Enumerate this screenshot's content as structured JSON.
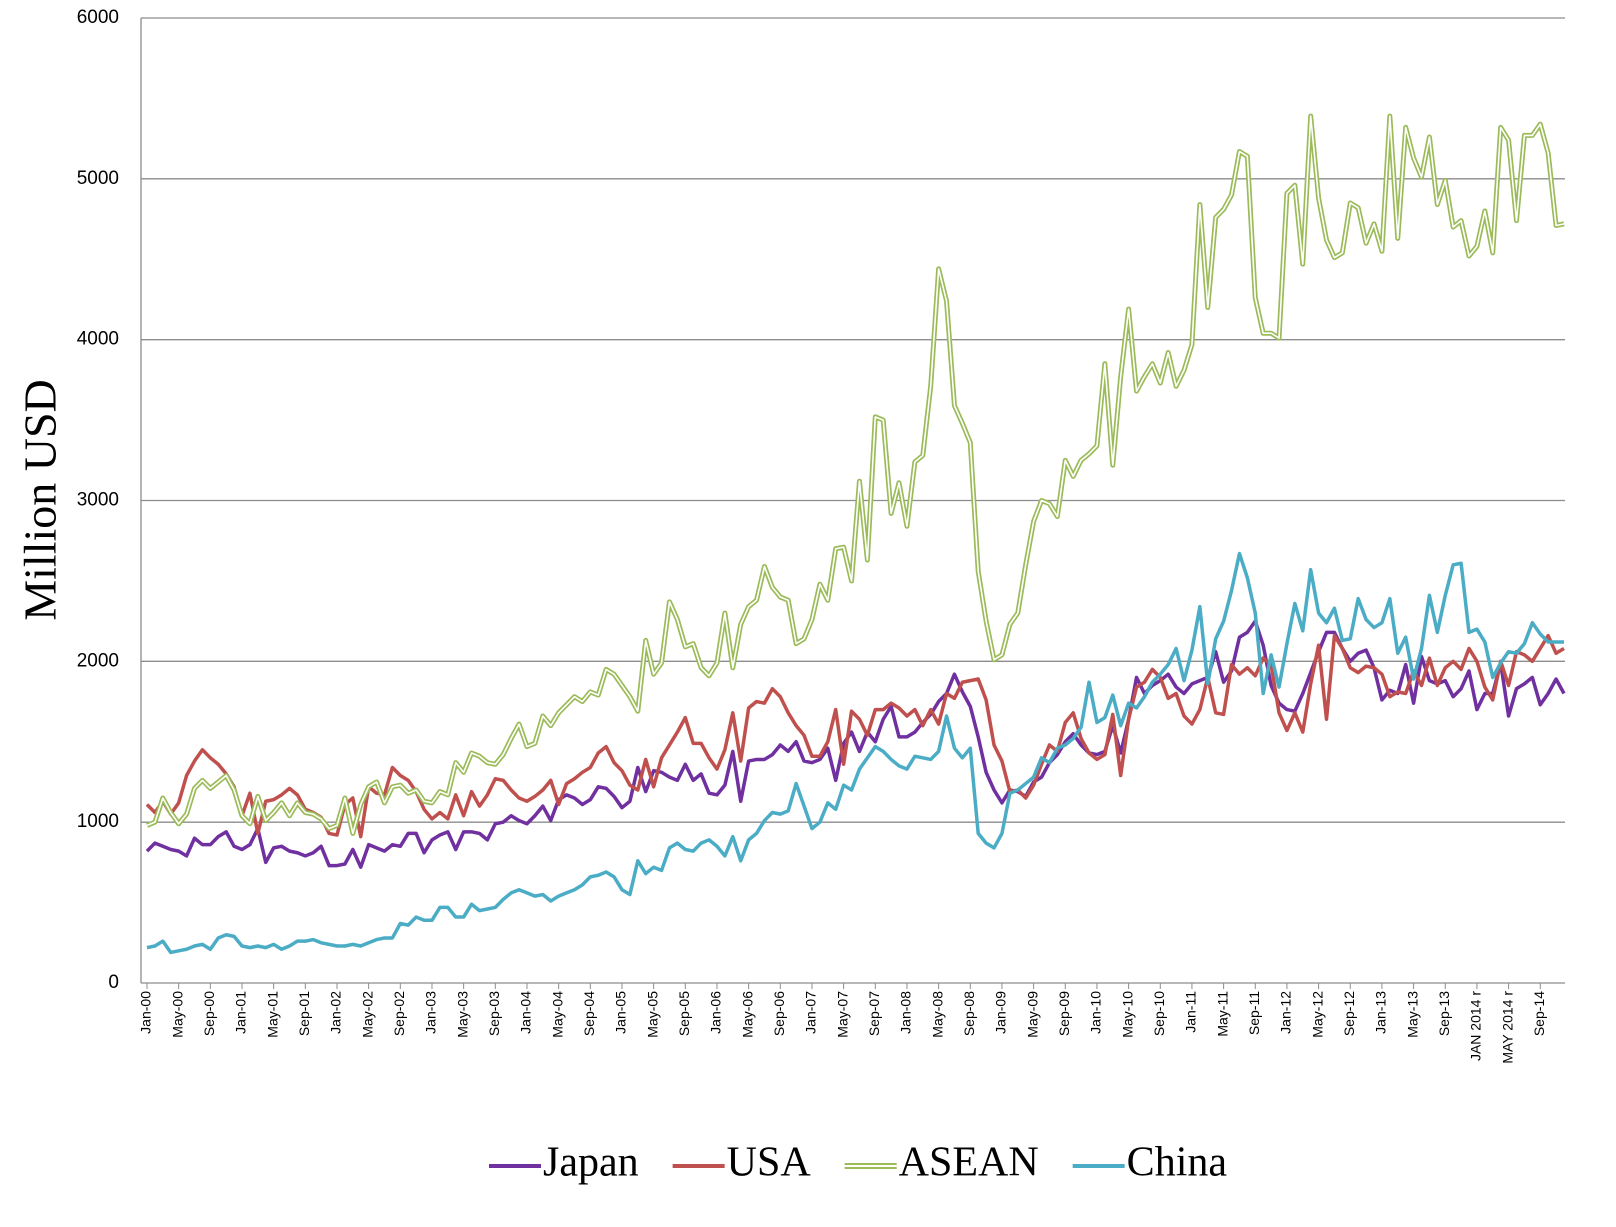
{
  "chart_data": {
    "type": "line",
    "y_label": "Million USD",
    "categories": [
      "Jan-00",
      null,
      null,
      null,
      "May-00",
      null,
      null,
      null,
      "Sep-00",
      null,
      null,
      null,
      "Jan-01",
      null,
      null,
      null,
      "May-01",
      null,
      null,
      null,
      "Sep-01",
      null,
      null,
      null,
      "Jan-02",
      null,
      null,
      null,
      "May-02",
      null,
      null,
      null,
      "Sep-02",
      null,
      null,
      null,
      "Jan-03",
      null,
      null,
      null,
      "May-03",
      null,
      null,
      null,
      "Sep-03",
      null,
      null,
      null,
      "Jan-04",
      null,
      null,
      null,
      "May-04",
      null,
      null,
      null,
      "Sep-04",
      null,
      null,
      null,
      "Jan-05",
      null,
      null,
      null,
      "May-05",
      null,
      null,
      null,
      "Sep-05",
      null,
      null,
      null,
      "Jan-06",
      null,
      null,
      null,
      "May-06",
      null,
      null,
      null,
      "Sep-06",
      null,
      null,
      null,
      "Jan-07",
      null,
      null,
      null,
      "May-07",
      null,
      null,
      null,
      "Sep-07",
      null,
      null,
      null,
      "Jan-08",
      null,
      null,
      null,
      "May-08",
      null,
      null,
      null,
      "Sep-08",
      null,
      null,
      null,
      "Jan-09",
      null,
      null,
      null,
      "May-09",
      null,
      null,
      null,
      "Sep-09",
      null,
      null,
      null,
      "Jan-10",
      null,
      null,
      null,
      "May-10",
      null,
      null,
      null,
      "Sep-10",
      null,
      null,
      null,
      "Jan-11",
      null,
      null,
      null,
      "May-11",
      null,
      null,
      null,
      "Sep-11",
      null,
      null,
      null,
      "Jan-12",
      null,
      null,
      null,
      "May-12",
      null,
      null,
      null,
      "Sep-12",
      null,
      null,
      null,
      "Jan-13",
      null,
      null,
      null,
      "May-13",
      null,
      null,
      null,
      "Sep-13",
      null,
      null,
      null,
      "JAN 2014 r",
      null,
      null,
      null,
      "MAY 2014 r",
      null,
      null,
      null,
      "Sep-14",
      null,
      null,
      null
    ],
    "series": [
      {
        "name": "Japan",
        "color": "#7030a0",
        "values": [
          820,
          870,
          850,
          830,
          820,
          790,
          900,
          860,
          860,
          910,
          940,
          850,
          830,
          860,
          960,
          750,
          840,
          850,
          820,
          810,
          790,
          810,
          850,
          730,
          730,
          740,
          830,
          720,
          860,
          840,
          820,
          860,
          850,
          930,
          930,
          810,
          890,
          920,
          940,
          830,
          940,
          940,
          930,
          890,
          990,
          1000,
          1040,
          1010,
          990,
          1040,
          1100,
          1010,
          1140,
          1170,
          1150,
          1110,
          1140,
          1220,
          1210,
          1160,
          1090,
          1130,
          1340,
          1190,
          1320,
          1310,
          1280,
          1260,
          1360,
          1260,
          1300,
          1180,
          1170,
          1230,
          1440,
          1130,
          1380,
          1390,
          1390,
          1420,
          1480,
          1440,
          1500,
          1380,
          1370,
          1390,
          1460,
          1260,
          1490,
          1560,
          1440,
          1560,
          1500,
          1640,
          1720,
          1530,
          1530,
          1560,
          1620,
          1670,
          1750,
          1800,
          1920,
          1810,
          1720,
          1530,
          1310,
          1200,
          1120,
          1200,
          1190,
          1160,
          1250,
          1280,
          1370,
          1420,
          1500,
          1550,
          1480,
          1430,
          1420,
          1440,
          1600,
          1430,
          1640,
          1900,
          1800,
          1850,
          1880,
          1920,
          1840,
          1800,
          1860,
          1880,
          1900,
          2060,
          1870,
          1940,
          2150,
          2180,
          2250,
          2100,
          1850,
          1740,
          1700,
          1690,
          1800,
          1930,
          2060,
          2180,
          2180,
          2080,
          2000,
          2050,
          2070,
          1960,
          1760,
          1820,
          1800,
          1980,
          1740,
          2030,
          1880,
          1860,
          1880,
          1780,
          1830,
          1940,
          1700,
          1800,
          1800,
          1990,
          1660,
          1830,
          1860,
          1900,
          1730,
          1800,
          1890,
          1800
        ]
      },
      {
        "name": "USA",
        "color": "#c0504d",
        "values": [
          1110,
          1060,
          1130,
          1050,
          1120,
          1290,
          1380,
          1450,
          1400,
          1360,
          1300,
          1220,
          1040,
          1180,
          930,
          1130,
          1140,
          1170,
          1210,
          1170,
          1080,
          1060,
          1030,
          930,
          920,
          1110,
          1150,
          910,
          1220,
          1180,
          1170,
          1340,
          1290,
          1260,
          1190,
          1080,
          1020,
          1060,
          1020,
          1170,
          1040,
          1190,
          1100,
          1170,
          1270,
          1260,
          1200,
          1150,
          1130,
          1160,
          1200,
          1260,
          1110,
          1240,
          1270,
          1310,
          1340,
          1430,
          1470,
          1370,
          1320,
          1230,
          1200,
          1390,
          1220,
          1400,
          1480,
          1560,
          1650,
          1490,
          1490,
          1400,
          1330,
          1450,
          1680,
          1380,
          1710,
          1750,
          1740,
          1830,
          1780,
          1680,
          1600,
          1540,
          1410,
          1410,
          1500,
          1700,
          1360,
          1690,
          1640,
          1540,
          1700,
          1700,
          1740,
          1710,
          1660,
          1700,
          1600,
          1700,
          1610,
          1800,
          1770,
          1870,
          1880,
          1890,
          1760,
          1480,
          1380,
          1190,
          1200,
          1150,
          1230,
          1360,
          1480,
          1440,
          1620,
          1680,
          1520,
          1430,
          1390,
          1420,
          1670,
          1290,
          1640,
          1840,
          1870,
          1950,
          1900,
          1770,
          1800,
          1660,
          1610,
          1700,
          1900,
          1680,
          1670,
          1980,
          1920,
          1960,
          1910,
          2020,
          1980,
          1680,
          1570,
          1680,
          1560,
          1860,
          2100,
          1640,
          2160,
          2080,
          1960,
          1930,
          1970,
          1960,
          1920,
          1780,
          1810,
          1800,
          1940,
          1850,
          2020,
          1850,
          1960,
          2000,
          1950,
          2080,
          2000,
          1840,
          1760,
          2000,
          1850,
          2060,
          2040,
          2000,
          2080,
          2160,
          2050,
          2080
        ]
      },
      {
        "name": "ASEAN",
        "color": "#9bbb59",
        "values": [
          980,
          1000,
          1150,
          1060,
          990,
          1050,
          1210,
          1260,
          1210,
          1250,
          1290,
          1200,
          1040,
          990,
          1160,
          1010,
          1060,
          1120,
          1040,
          1120,
          1060,
          1050,
          1020,
          960,
          980,
          1150,
          930,
          1110,
          1220,
          1250,
          1120,
          1220,
          1230,
          1180,
          1200,
          1130,
          1120,
          1190,
          1170,
          1370,
          1310,
          1430,
          1410,
          1370,
          1360,
          1420,
          1520,
          1610,
          1470,
          1490,
          1660,
          1600,
          1680,
          1730,
          1780,
          1750,
          1810,
          1790,
          1950,
          1920,
          1850,
          1780,
          1690,
          2130,
          1920,
          1990,
          2370,
          2260,
          2090,
          2110,
          1960,
          1910,
          1990,
          2300,
          1960,
          2230,
          2340,
          2380,
          2590,
          2460,
          2400,
          2380,
          2110,
          2140,
          2260,
          2480,
          2380,
          2700,
          2710,
          2500,
          3120,
          2630,
          3520,
          3500,
          2920,
          3110,
          2840,
          3240,
          3280,
          3710,
          4440,
          4240,
          3590,
          3480,
          3360,
          2560,
          2250,
          2010,
          2040,
          2230,
          2300,
          2600,
          2870,
          3000,
          2980,
          2900,
          3250,
          3150,
          3250,
          3290,
          3340,
          3850,
          3220,
          3770,
          4190,
          3680,
          3770,
          3850,
          3730,
          3920,
          3710,
          3810,
          3970,
          4840,
          4200,
          4760,
          4810,
          4900,
          5170,
          5140,
          4260,
          4040,
          4040,
          4010,
          4910,
          4960,
          4470,
          5390,
          4880,
          4620,
          4510,
          4540,
          4850,
          4820,
          4600,
          4720,
          4550,
          5390,
          4630,
          5320,
          5130,
          5010,
          5260,
          4840,
          4990,
          4700,
          4740,
          4520,
          4580,
          4800,
          4540,
          5320,
          5240,
          4740,
          5270,
          5270,
          5340,
          5160,
          4710,
          4720
        ]
      },
      {
        "name": "China",
        "color": "#4bacc6",
        "values": [
          220,
          230,
          260,
          190,
          200,
          210,
          230,
          240,
          210,
          280,
          300,
          290,
          230,
          220,
          230,
          220,
          240,
          210,
          230,
          260,
          260,
          270,
          250,
          240,
          230,
          230,
          240,
          230,
          250,
          270,
          280,
          280,
          370,
          360,
          410,
          390,
          390,
          470,
          470,
          410,
          410,
          490,
          450,
          460,
          470,
          520,
          560,
          580,
          560,
          540,
          550,
          510,
          540,
          560,
          580,
          610,
          660,
          670,
          690,
          660,
          580,
          550,
          760,
          680,
          720,
          700,
          840,
          870,
          830,
          820,
          870,
          890,
          850,
          790,
          910,
          760,
          890,
          930,
          1010,
          1060,
          1050,
          1070,
          1240,
          1100,
          960,
          1000,
          1120,
          1080,
          1230,
          1200,
          1330,
          1400,
          1470,
          1440,
          1390,
          1350,
          1330,
          1410,
          1400,
          1390,
          1440,
          1660,
          1460,
          1400,
          1460,
          930,
          870,
          840,
          930,
          1180,
          1200,
          1240,
          1280,
          1400,
          1370,
          1460,
          1480,
          1520,
          1590,
          1870,
          1620,
          1650,
          1790,
          1600,
          1740,
          1710,
          1780,
          1870,
          1920,
          1980,
          2080,
          1880,
          2070,
          2340,
          1860,
          2140,
          2250,
          2440,
          2670,
          2520,
          2300,
          1800,
          2040,
          1840,
          2110,
          2360,
          2190,
          2570,
          2300,
          2240,
          2330,
          2130,
          2140,
          2390,
          2260,
          2210,
          2240,
          2390,
          2050,
          2150,
          1890,
          2080,
          2410,
          2180,
          2410,
          2600,
          2610,
          2180,
          2200,
          2120,
          1900,
          1990,
          2060,
          2050,
          2110,
          2240,
          2170,
          2120,
          2120,
          2120
        ]
      }
    ],
    "ylim": [
      0,
      6000
    ],
    "yticks": [
      0,
      1000,
      2000,
      3000,
      4000,
      5000,
      6000
    ],
    "grid": true,
    "legend": "bottom"
  }
}
